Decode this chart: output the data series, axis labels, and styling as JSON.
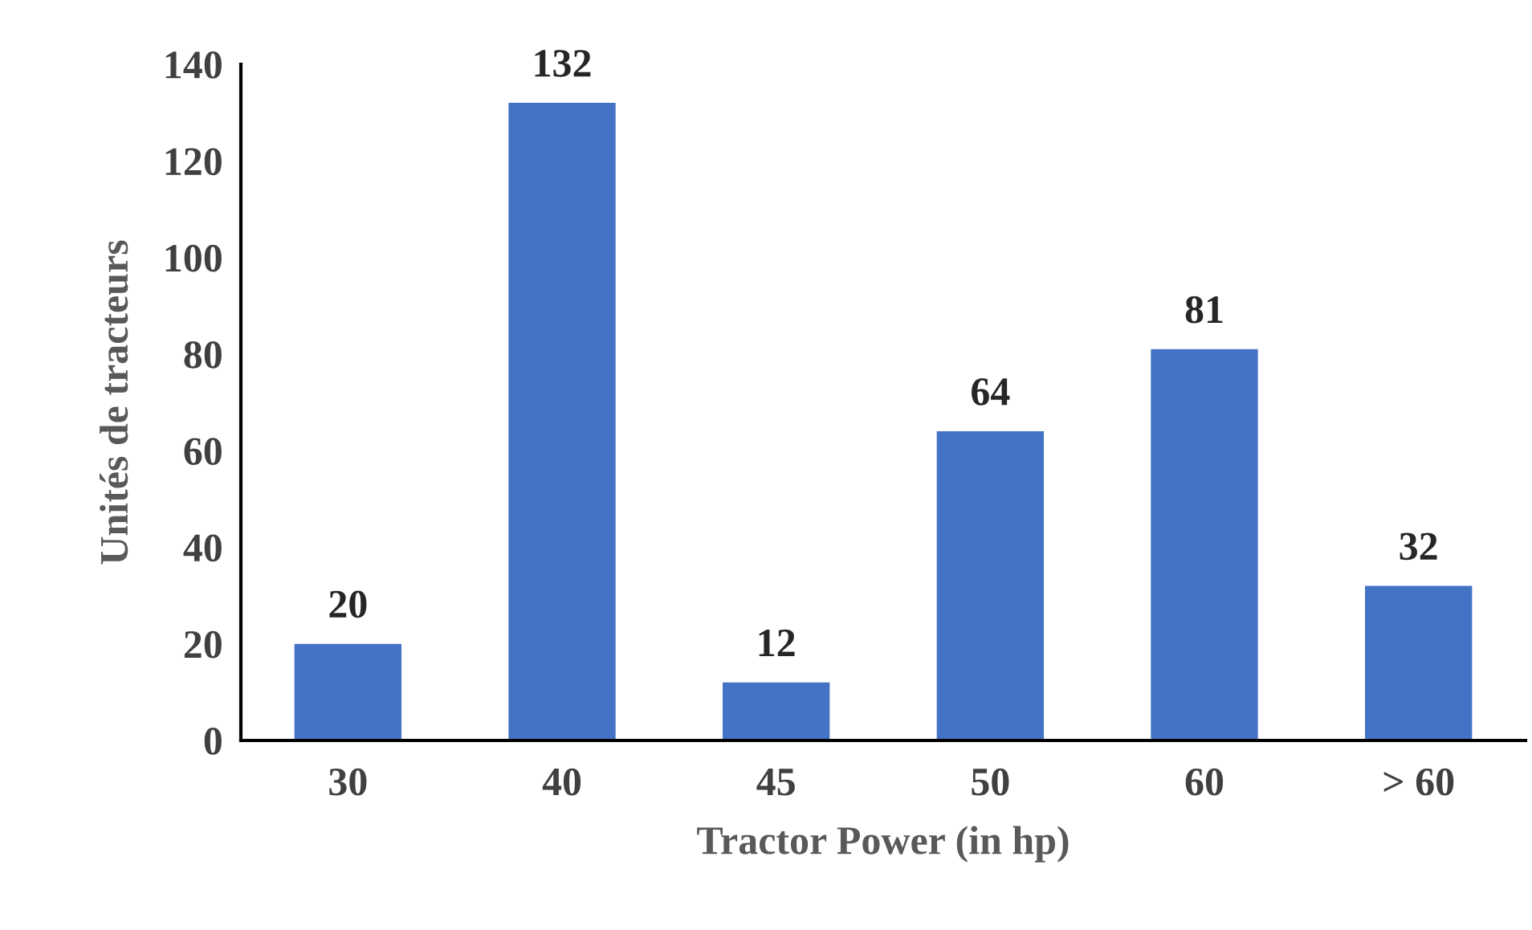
{
  "chart_data": {
    "type": "bar",
    "xlabel": "Tractor Power (in hp)",
    "ylabel": "Unités de tracteurs",
    "categories": [
      "30",
      "40",
      "45",
      "50",
      "60",
      "> 60"
    ],
    "values": [
      20,
      132,
      12,
      64,
      81,
      32
    ],
    "color": "#4472c4",
    "ylim": [
      0,
      140
    ],
    "yticks": [
      0,
      20,
      40,
      60,
      80,
      100,
      120,
      140
    ],
    "data_labels": true,
    "grid": false,
    "legend": false
  }
}
